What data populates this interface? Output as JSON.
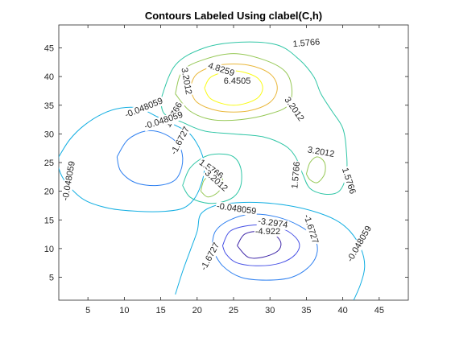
{
  "chart_data": {
    "type": "contour",
    "title": "Contours Labeled Using clabel(C,h)",
    "xlim": [
      1,
      49
    ],
    "ylim": [
      1,
      49
    ],
    "xticks": [
      5,
      10,
      15,
      20,
      25,
      30,
      35,
      40,
      45
    ],
    "yticks": [
      5,
      10,
      15,
      20,
      25,
      30,
      35,
      40,
      45
    ],
    "grid": false,
    "colormap": "parula",
    "levels": [
      -4.922,
      -3.2974,
      -1.6727,
      -0.048059,
      1.5766,
      3.2012,
      4.8259,
      6.4505
    ],
    "level_colors": [
      "#3e26a8",
      "#4751e6",
      "#2f80f0",
      "#12aee2",
      "#30c6a6",
      "#96c856",
      "#e9b73a",
      "#f9fb15"
    ],
    "contours": [
      {
        "level": 6.4505,
        "points": [
          [
            21,
            38
          ],
          [
            22,
            40
          ],
          [
            25,
            41
          ],
          [
            28,
            40
          ],
          [
            29,
            38
          ],
          [
            28,
            36
          ],
          [
            25,
            35
          ],
          [
            22,
            36
          ],
          [
            21,
            38
          ]
        ]
      },
      {
        "level": 4.8259,
        "points": [
          [
            19,
            38
          ],
          [
            20,
            40.5
          ],
          [
            23,
            42
          ],
          [
            27,
            42
          ],
          [
            30,
            40.5
          ],
          [
            31,
            38
          ],
          [
            30,
            35.5
          ],
          [
            27,
            34
          ],
          [
            23,
            34
          ],
          [
            20,
            35.5
          ],
          [
            19,
            38
          ]
        ]
      },
      {
        "level": 3.2012,
        "points": [
          [
            17,
            37
          ],
          [
            18,
            41
          ],
          [
            21,
            43
          ],
          [
            25,
            44
          ],
          [
            29,
            43
          ],
          [
            32,
            41
          ],
          [
            33,
            38
          ],
          [
            32.5,
            35
          ],
          [
            30,
            33.5
          ],
          [
            26,
            32.5
          ],
          [
            22,
            32.5
          ],
          [
            19,
            34
          ],
          [
            17,
            37
          ]
        ]
      },
      {
        "level": 1.5766,
        "points": [
          [
            15,
            36
          ],
          [
            17,
            42
          ],
          [
            21,
            45
          ],
          [
            26,
            46
          ],
          [
            31,
            45.5
          ],
          [
            34,
            43
          ],
          [
            36,
            40
          ],
          [
            37,
            37
          ],
          [
            38.5,
            34
          ],
          [
            40,
            31
          ],
          [
            40.5,
            27
          ],
          [
            40.5,
            23
          ],
          [
            39.5,
            20
          ],
          [
            37.5,
            19.5
          ],
          [
            35.5,
            20.5
          ],
          [
            34.5,
            23
          ],
          [
            33.5,
            26
          ],
          [
            32,
            28
          ],
          [
            29,
            29.5
          ],
          [
            25,
            30
          ],
          [
            21,
            30.5
          ],
          [
            18,
            32
          ],
          [
            15.5,
            33.5
          ],
          [
            15,
            36
          ]
        ]
      },
      {
        "level": 1.5766,
        "points": [
          [
            18,
            21
          ],
          [
            19,
            24
          ],
          [
            21,
            26
          ],
          [
            23,
            26.5
          ],
          [
            25,
            26
          ],
          [
            26,
            24
          ],
          [
            26,
            21
          ],
          [
            25,
            19
          ],
          [
            23,
            18
          ],
          [
            21,
            18
          ],
          [
            19,
            19
          ],
          [
            18,
            21
          ]
        ]
      },
      {
        "level": 3.2012,
        "points": [
          [
            20.5,
            20
          ],
          [
            21,
            22
          ],
          [
            22.5,
            23
          ],
          [
            23.5,
            22
          ],
          [
            23,
            20
          ],
          [
            21.5,
            19
          ],
          [
            20.5,
            20
          ]
        ]
      },
      {
        "level": 3.2012,
        "points": [
          [
            35,
            23
          ],
          [
            35.5,
            25
          ],
          [
            36.5,
            26
          ],
          [
            37.5,
            25
          ],
          [
            37.5,
            23
          ],
          [
            36.5,
            21.5
          ],
          [
            35.5,
            22
          ],
          [
            35,
            23
          ]
        ]
      },
      {
        "level": -1.6727,
        "points": [
          [
            9,
            26
          ],
          [
            10.5,
            29
          ],
          [
            13,
            30.5
          ],
          [
            15.5,
            30
          ],
          [
            17.5,
            28
          ],
          [
            18,
            25
          ],
          [
            17,
            22
          ],
          [
            14.5,
            21
          ],
          [
            11.5,
            21.5
          ],
          [
            9.5,
            23.5
          ],
          [
            9,
            26
          ]
        ]
      },
      {
        "level": -0.048059,
        "points": [
          [
            1,
            26
          ],
          [
            2.5,
            29
          ],
          [
            4.5,
            31.5
          ],
          [
            7,
            33.5
          ],
          [
            9.5,
            34.5
          ],
          [
            12,
            34.5
          ],
          [
            14.5,
            33
          ],
          [
            17,
            31.5
          ],
          [
            19,
            30
          ],
          [
            20.5,
            27
          ],
          [
            21,
            24
          ],
          [
            20.5,
            21
          ],
          [
            19.5,
            18.5
          ],
          [
            18,
            17
          ],
          [
            15.5,
            16.5
          ],
          [
            12,
            16.5
          ],
          [
            8,
            17
          ],
          [
            4.5,
            18.5
          ],
          [
            2,
            21.5
          ],
          [
            1,
            24
          ],
          [
            1,
            26
          ]
        ]
      },
      {
        "level": -0.048059,
        "points": [
          [
            17,
            2
          ],
          [
            18,
            6
          ],
          [
            19,
            9.5
          ],
          [
            20,
            13
          ],
          [
            20.5,
            16
          ],
          [
            22.5,
            17.5
          ],
          [
            25.5,
            18
          ],
          [
            29,
            18
          ],
          [
            32.5,
            17.5
          ],
          [
            36,
            16.5
          ],
          [
            39,
            15
          ],
          [
            41,
            13
          ],
          [
            42.5,
            10
          ],
          [
            43,
            7
          ],
          [
            42.5,
            4
          ],
          [
            41.5,
            1
          ]
        ]
      },
      {
        "level": -1.6727,
        "points": [
          [
            22,
            10
          ],
          [
            22.5,
            13
          ],
          [
            24.5,
            15
          ],
          [
            27.5,
            16
          ],
          [
            31,
            15.5
          ],
          [
            34,
            14
          ],
          [
            36,
            12
          ],
          [
            36.5,
            9.5
          ],
          [
            35.5,
            7
          ],
          [
            33,
            5
          ],
          [
            29.5,
            4.5
          ],
          [
            26,
            5
          ],
          [
            23.5,
            7
          ],
          [
            22,
            10
          ]
        ]
      },
      {
        "level": -3.2974,
        "points": [
          [
            23.5,
            10.5
          ],
          [
            24.5,
            13
          ],
          [
            27,
            14
          ],
          [
            30,
            14
          ],
          [
            32.5,
            13
          ],
          [
            34,
            11
          ],
          [
            33.5,
            9
          ],
          [
            31.5,
            7.5
          ],
          [
            28.5,
            7
          ],
          [
            25.5,
            7.5
          ],
          [
            24,
            9
          ],
          [
            23.5,
            10.5
          ]
        ]
      },
      {
        "level": -4.922,
        "points": [
          [
            25.5,
            10.5
          ],
          [
            26.5,
            12.5
          ],
          [
            28.5,
            13
          ],
          [
            30.5,
            12.5
          ],
          [
            31.5,
            11
          ],
          [
            31,
            9.5
          ],
          [
            29,
            8.5
          ],
          [
            27,
            8.5
          ],
          [
            25.5,
            10.5
          ]
        ]
      }
    ],
    "labels": [
      {
        "text": "1.5766",
        "x": 35,
        "y": 45.8,
        "angle": 5
      },
      {
        "text": "4.8259",
        "x": 23.3,
        "y": 41.2,
        "angle": -18
      },
      {
        "text": "6.4505",
        "x": 25.5,
        "y": 39.2,
        "angle": 0
      },
      {
        "text": "3.2012",
        "x": 18.5,
        "y": 39.2,
        "angle": -80
      },
      {
        "text": "-0.048059",
        "x": 12.7,
        "y": 34.5,
        "angle": 22
      },
      {
        "text": "1.5766",
        "x": 16.8,
        "y": 33.3,
        "angle": 62
      },
      {
        "text": "-0.048059",
        "x": 15.4,
        "y": 32.3,
        "angle": 18
      },
      {
        "text": "3.2012",
        "x": 33.3,
        "y": 34.3,
        "angle": -55
      },
      {
        "text": "-1.6727",
        "x": 17.7,
        "y": 28.8,
        "angle": 62
      },
      {
        "text": "3.2012",
        "x": 37,
        "y": 26.8,
        "angle": -10
      },
      {
        "text": "1.5766",
        "x": 33.6,
        "y": 22.8,
        "angle": 85
      },
      {
        "text": "1.5766",
        "x": 40.8,
        "y": 21.8,
        "angle": -72
      },
      {
        "text": "-0.048059",
        "x": 2.4,
        "y": 21.8,
        "angle": 80
      },
      {
        "text": "1.5766",
        "x": 21.9,
        "y": 23.8,
        "angle": -35
      },
      {
        "text": "3.2012",
        "x": 22.6,
        "y": 21.8,
        "angle": -42
      },
      {
        "text": "-0.048059",
        "x": 25.4,
        "y": 16.9,
        "angle": -8
      },
      {
        "text": "-3.2974",
        "x": 30.4,
        "y": 14.4,
        "angle": -8
      },
      {
        "text": "-4.922",
        "x": 29.7,
        "y": 12.9,
        "angle": 0
      },
      {
        "text": "-1.6727",
        "x": 35.6,
        "y": 13.4,
        "angle": -72
      },
      {
        "text": "-1.6727",
        "x": 21.8,
        "y": 8.6,
        "angle": 62
      },
      {
        "text": "-0.048059",
        "x": 42.3,
        "y": 10.8,
        "angle": 60
      }
    ]
  }
}
